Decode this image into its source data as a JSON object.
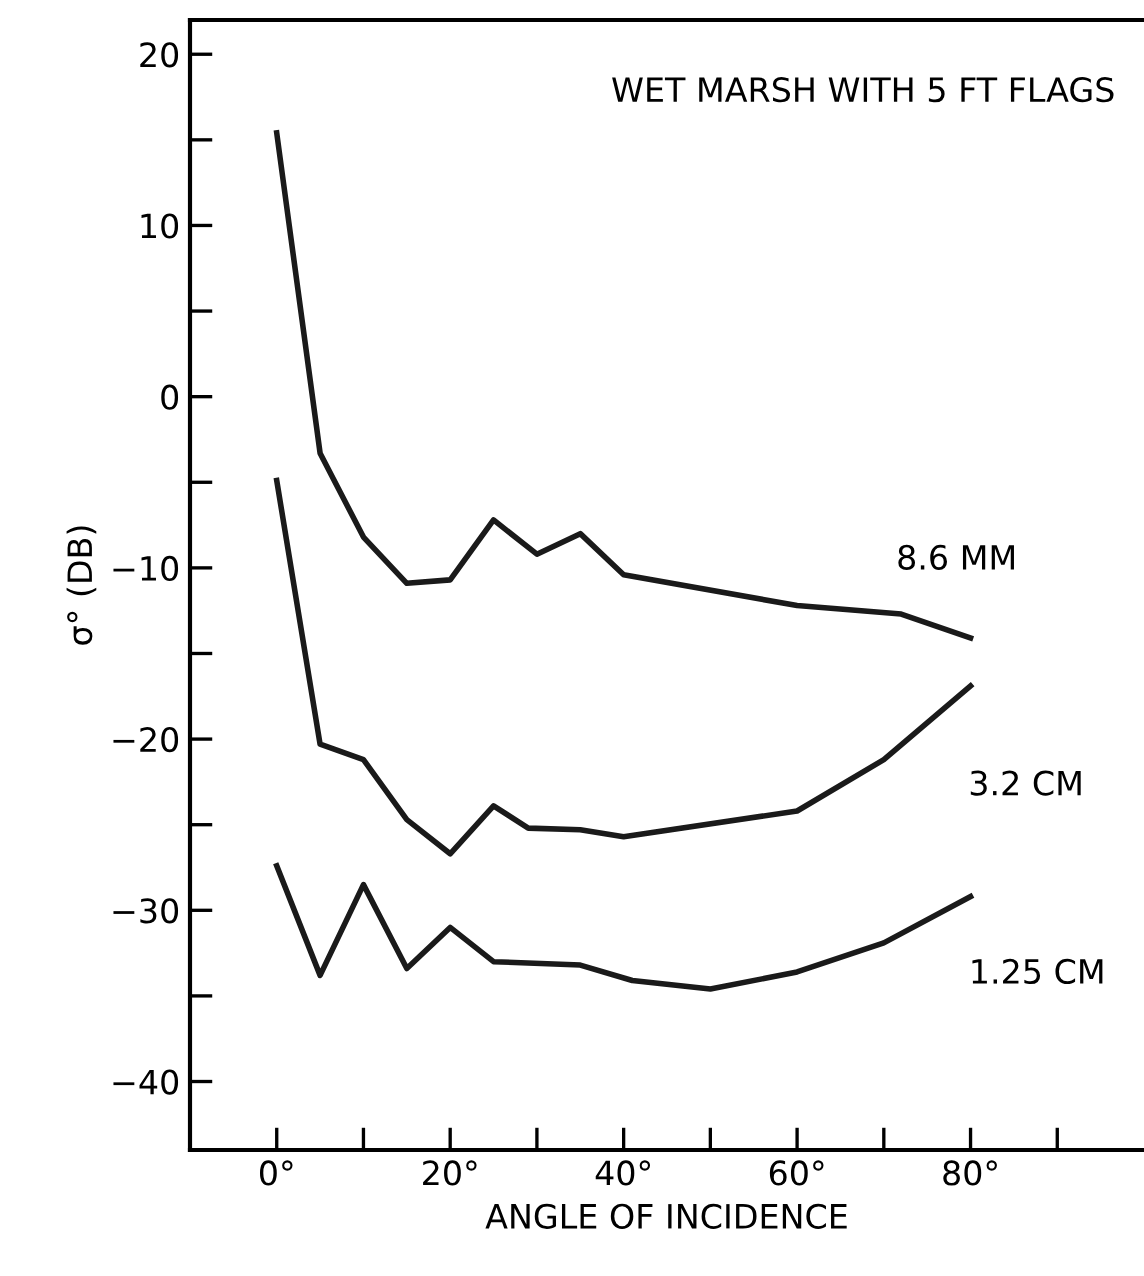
{
  "chart_data": {
    "type": "line",
    "title": "WET MARSH WITH 5 FT FLAGS",
    "xlabel": "ANGLE OF INCIDENCE",
    "ylabel": "σ° (DB)",
    "series": [
      {
        "name": "8.6 MM",
        "color": "#1a1a1a",
        "x": [
          0,
          5,
          10,
          15,
          20,
          25,
          30,
          35,
          40,
          60,
          72,
          80
        ],
        "values": [
          15.4,
          -3.3,
          -8.2,
          -10.9,
          -10.7,
          -7.2,
          -9.2,
          -8.0,
          -10.4,
          -12.2,
          -12.7,
          -14.1
        ]
      },
      {
        "name": "3.2 CM",
        "color": "#1a1a1a",
        "x": [
          0,
          5,
          10,
          15,
          20,
          25,
          29,
          35,
          40,
          60,
          70,
          80
        ],
        "values": [
          -4.9,
          -20.3,
          -21.2,
          -24.7,
          -26.7,
          -23.9,
          -25.2,
          -25.3,
          -25.7,
          -24.2,
          -21.2,
          -16.9
        ]
      },
      {
        "name": "1.25 CM",
        "color": "#1a1a1a",
        "x": [
          0,
          5,
          10,
          15,
          20,
          25,
          35,
          41,
          50,
          60,
          70,
          80
        ],
        "values": [
          -27.4,
          -33.8,
          -28.5,
          -33.4,
          -31.0,
          -33.0,
          -33.2,
          -34.1,
          -34.6,
          -33.6,
          -31.9,
          -29.2
        ]
      }
    ],
    "xlim": [
      -10,
      100
    ],
    "ylim": [
      -44,
      22
    ],
    "xticks": [
      {
        "value": 0,
        "label": "0°"
      },
      {
        "value": 10,
        "label": null
      },
      {
        "value": 20,
        "label": "20°"
      },
      {
        "value": 30,
        "label": null
      },
      {
        "value": 40,
        "label": "40°"
      },
      {
        "value": 50,
        "label": null
      },
      {
        "value": 60,
        "label": "60°"
      },
      {
        "value": 70,
        "label": null
      },
      {
        "value": 80,
        "label": "80°"
      },
      {
        "value": 90,
        "label": null
      }
    ],
    "yticks": [
      {
        "value": -40,
        "label": "−40"
      },
      {
        "value": -35,
        "label": null
      },
      {
        "value": -30,
        "label": "−30"
      },
      {
        "value": -25,
        "label": null
      },
      {
        "value": -20,
        "label": "−20"
      },
      {
        "value": -15,
        "label": null
      },
      {
        "value": -10,
        "label": "−10"
      },
      {
        "value": -5,
        "label": null
      },
      0,
      {
        "value": 5,
        "label": null
      },
      10,
      {
        "value": 15,
        "label": null
      },
      20
    ],
    "grid": false,
    "legend": false,
    "marker": "none",
    "line_style": "solid"
  }
}
